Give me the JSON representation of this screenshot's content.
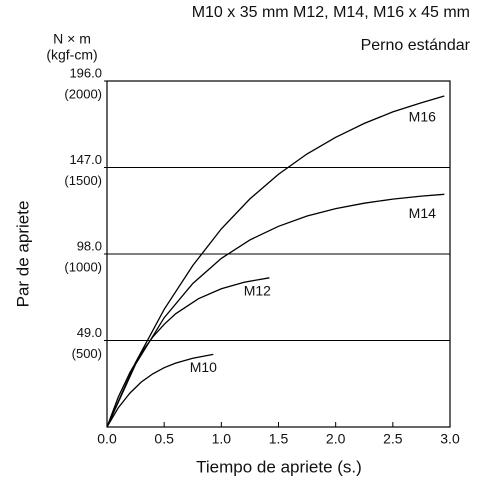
{
  "chart_data": {
    "type": "line",
    "title": "M10 x 35 mm M12, M14, M16 x 45 mm",
    "subtitle": "Perno estándar",
    "y_unit": "N × m",
    "y2_unit": "(kgf-cm)",
    "y_label": "Par de apriete",
    "x_label": "Tiempo de apriete (s.)",
    "xlim": [
      0,
      3
    ],
    "xticks": [
      {
        "value": 0,
        "label": "0.0"
      },
      0.5,
      {
        "value": 1,
        "label": "1.0"
      },
      1.5,
      {
        "value": 2,
        "label": "2.0"
      },
      2.5,
      {
        "value": 3,
        "label": "3.0"
      }
    ],
    "ylim": [
      0,
      196
    ],
    "yticks": [
      {
        "value": 49,
        "label": "49.0"
      },
      {
        "value": 98,
        "label": "98.0"
      },
      {
        "value": 147,
        "label": "147.0"
      },
      {
        "value": 196,
        "label": "196.0"
      }
    ],
    "y2lim": [
      0,
      2000
    ],
    "y2ticks": [
      {
        "value": 500,
        "label": "(500)"
      },
      {
        "value": 1000,
        "label": "(1000)"
      },
      {
        "value": 1500,
        "label": "(1500)"
      },
      {
        "value": 2000,
        "label": "(2000)"
      }
    ],
    "grid": true,
    "series": [
      {
        "name": "M16",
        "color": "#000000",
        "x": [
          0,
          0.25,
          0.5,
          0.75,
          1.0,
          1.25,
          1.5,
          1.75,
          2.0,
          2.25,
          2.5,
          2.75,
          2.95
        ],
        "values": [
          0,
          36.6,
          66.7,
          91.5,
          112.2,
          129.2,
          143.2,
          154.7,
          164.1,
          172.0,
          178.5,
          183.7,
          187.5
        ]
      },
      {
        "name": "M14",
        "color": "#000000",
        "x": [
          0,
          0.25,
          0.5,
          0.75,
          1.0,
          1.25,
          1.5,
          1.75,
          2.0,
          2.25,
          2.5,
          2.75,
          2.95
        ],
        "values": [
          0,
          35.6,
          61.9,
          81.3,
          95.5,
          106.0,
          113.7,
          119.5,
          123.7,
          126.8,
          129.1,
          130.8,
          131.8
        ]
      },
      {
        "name": "M12",
        "color": "#000000",
        "x": [
          0,
          0.1,
          0.2,
          0.3,
          0.4,
          0.5,
          0.6,
          0.8,
          1.0,
          1.2,
          1.42
        ],
        "values": [
          0,
          17.1,
          30.8,
          42.0,
          50.9,
          58.2,
          64.1,
          72.7,
          78.3,
          82.0,
          84.5
        ]
      },
      {
        "name": "M10",
        "color": "#000000",
        "x": [
          0,
          0.1,
          0.2,
          0.3,
          0.4,
          0.5,
          0.6,
          0.75,
          0.93
        ],
        "values": [
          0,
          11.0,
          19.2,
          25.5,
          30.1,
          33.6,
          36.2,
          39.0,
          41.1
        ]
      }
    ]
  }
}
